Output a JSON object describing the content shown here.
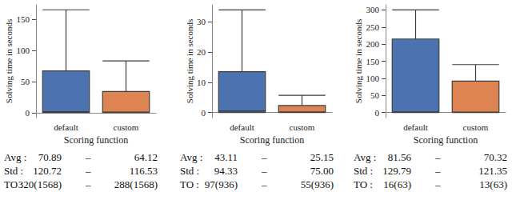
{
  "chart_data": [
    {
      "type": "boxplot",
      "xlabel": "Scoring function",
      "ylabel": "Solving time in seconds",
      "categories": [
        "default",
        "custom"
      ],
      "colors": [
        "#4c72b0",
        "#dd8452"
      ],
      "boxes": [
        [
          0,
          0.3,
          1.5,
          67,
          165
        ],
        [
          0,
          0.2,
          1,
          34,
          83
        ]
      ],
      "ylim": [
        -8,
        173
      ],
      "yticks": [
        0,
        50,
        100,
        150
      ],
      "stats": [
        [
          "Avg :",
          "70.89",
          "–",
          "64.12"
        ],
        [
          "Std :",
          "120.72",
          "–",
          "116.53"
        ],
        [
          "TO :",
          "320(1568)",
          "–",
          "288(1568)"
        ]
      ]
    },
    {
      "type": "boxplot",
      "xlabel": "Scoring function",
      "ylabel": "Solving time in seconds",
      "categories": [
        "default",
        "custom"
      ],
      "colors": [
        "#4c72b0",
        "#dd8452"
      ],
      "boxes": [
        [
          0,
          0.05,
          0.5,
          13.5,
          34
        ],
        [
          0,
          0.02,
          0.2,
          2.3,
          5.7
        ]
      ],
      "ylim": [
        -1.7,
        35.7
      ],
      "yticks": [
        0,
        10,
        20,
        30
      ],
      "stats": [
        [
          "Avg :",
          "43.11",
          "–",
          "25.15"
        ],
        [
          "Std :",
          "94.33",
          "–",
          "75.00"
        ],
        [
          "TO :",
          "97(936)",
          "–",
          "55(936)"
        ]
      ]
    },
    {
      "type": "boxplot",
      "xlabel": "Scoring function",
      "ylabel": "Solving time in seconds",
      "categories": [
        "default",
        "custom"
      ],
      "colors": [
        "#4c72b0",
        "#dd8452"
      ],
      "boxes": [
        [
          0,
          0.5,
          2,
          215,
          300
        ],
        [
          0,
          0.3,
          1,
          92,
          140
        ]
      ],
      "ylim": [
        -15,
        315
      ],
      "yticks": [
        0,
        50,
        100,
        150,
        200,
        250,
        300
      ],
      "stats": [
        [
          "Avg :",
          "81.56",
          "–",
          "70.32"
        ],
        [
          "Std :",
          "129.79",
          "–",
          "121.35"
        ],
        [
          "TO :",
          "16(63)",
          "–",
          "13(63)"
        ]
      ]
    }
  ]
}
